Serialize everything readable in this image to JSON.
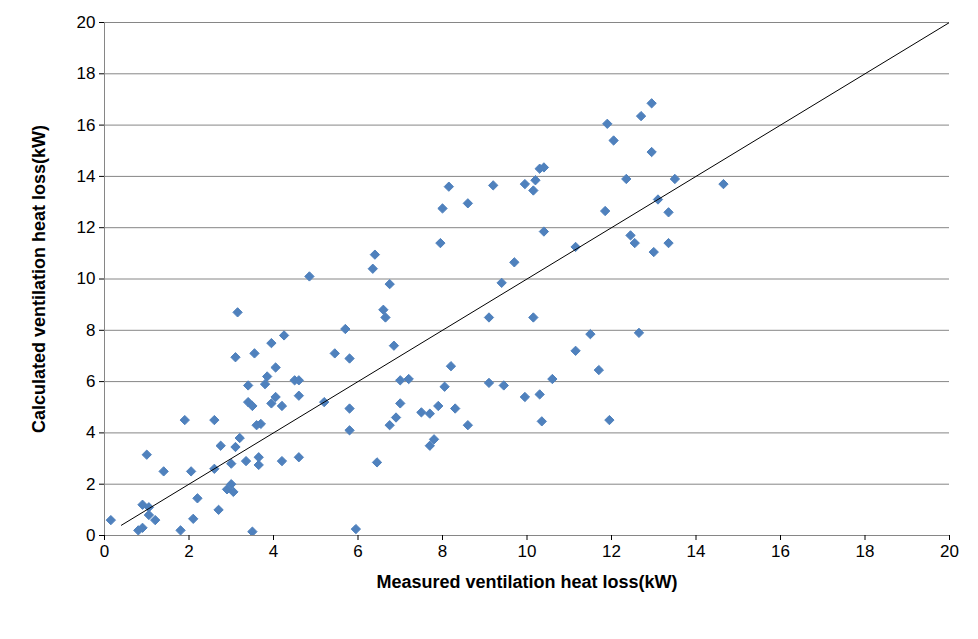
{
  "chart_data": {
    "type": "scatter",
    "x_label": "Measured ventilation heat loss(kW)",
    "y_label": "Calculated ventilation heat loss(kW)",
    "xlim": [
      0,
      20
    ],
    "ylim": [
      0,
      20
    ],
    "xticks": [
      0,
      2,
      4,
      6,
      8,
      10,
      12,
      14,
      16,
      18,
      20
    ],
    "yticks": [
      0,
      2,
      4,
      6,
      8,
      10,
      12,
      14,
      16,
      18,
      20
    ],
    "grid": "y",
    "series": [
      {
        "type": "scatter",
        "color": "#4f81bd",
        "marker": "diamond",
        "x": [
          0.15,
          0.8,
          0.9,
          0.9,
          1.0,
          1.05,
          1.05,
          1.2,
          1.4,
          1.8,
          1.9,
          2.05,
          2.1,
          2.2,
          2.6,
          2.6,
          2.7,
          2.75,
          2.9,
          3.0,
          3.0,
          3.05,
          3.1,
          3.1,
          3.15,
          3.2,
          3.35,
          3.4,
          3.4,
          3.5,
          3.5,
          3.55,
          3.6,
          3.65,
          3.65,
          3.7,
          3.8,
          3.85,
          3.95,
          3.95,
          4.05,
          4.05,
          4.2,
          4.2,
          4.25,
          4.5,
          4.6,
          4.6,
          4.6,
          4.85,
          5.2,
          5.45,
          5.7,
          5.8,
          5.8,
          5.8,
          5.95,
          6.35,
          6.4,
          6.45,
          6.6,
          6.65,
          6.75,
          6.75,
          6.85,
          6.9,
          7.0,
          7.0,
          7.2,
          7.5,
          7.7,
          7.7,
          7.8,
          7.9,
          7.95,
          8.0,
          8.05,
          8.15,
          8.2,
          8.3,
          8.6,
          8.6,
          9.1,
          9.1,
          9.2,
          9.4,
          9.45,
          9.7,
          9.95,
          9.95,
          10.15,
          10.15,
          10.2,
          10.3,
          10.3,
          10.35,
          10.4,
          10.4,
          10.6,
          11.15,
          11.15,
          11.5,
          11.7,
          11.85,
          11.9,
          11.95,
          12.05,
          12.35,
          12.45,
          12.55,
          12.65,
          12.7,
          12.95,
          12.95,
          13.0,
          13.1,
          13.35,
          13.35,
          13.5,
          14.65
        ],
        "values": [
          0.6,
          0.2,
          1.2,
          0.3,
          3.15,
          1.1,
          0.8,
          0.6,
          2.5,
          0.2,
          4.5,
          2.5,
          0.65,
          1.45,
          4.5,
          2.6,
          1.0,
          3.5,
          1.8,
          2.8,
          2.0,
          1.7,
          3.45,
          6.95,
          8.7,
          3.8,
          2.9,
          5.2,
          5.85,
          0.15,
          5.05,
          7.1,
          4.3,
          2.75,
          3.05,
          4.35,
          5.9,
          6.2,
          5.15,
          7.5,
          5.4,
          6.55,
          2.9,
          5.05,
          7.8,
          6.05,
          3.05,
          5.45,
          6.05,
          10.1,
          5.2,
          7.1,
          8.05,
          4.1,
          4.95,
          6.9,
          0.25,
          10.4,
          10.95,
          2.85,
          8.8,
          8.5,
          9.8,
          4.3,
          7.4,
          4.6,
          5.15,
          6.05,
          6.1,
          4.8,
          3.5,
          4.75,
          3.75,
          5.05,
          11.4,
          12.75,
          5.8,
          13.6,
          6.6,
          4.95,
          12.95,
          4.3,
          5.95,
          8.5,
          13.65,
          9.85,
          5.85,
          10.65,
          5.4,
          13.7,
          13.45,
          8.5,
          13.85,
          14.3,
          5.5,
          4.45,
          14.35,
          11.85,
          6.1,
          11.25,
          7.2,
          7.85,
          6.45,
          12.65,
          16.05,
          4.5,
          15.4,
          13.9,
          11.7,
          11.4,
          7.9,
          16.35,
          16.85,
          14.95,
          11.05,
          13.1,
          12.6,
          11.4,
          13.9,
          13.7
        ]
      },
      {
        "type": "line",
        "color": "#000000",
        "line_style": "solid",
        "x": [
          0.4,
          20
        ],
        "values": [
          0.4,
          20
        ]
      }
    ]
  }
}
